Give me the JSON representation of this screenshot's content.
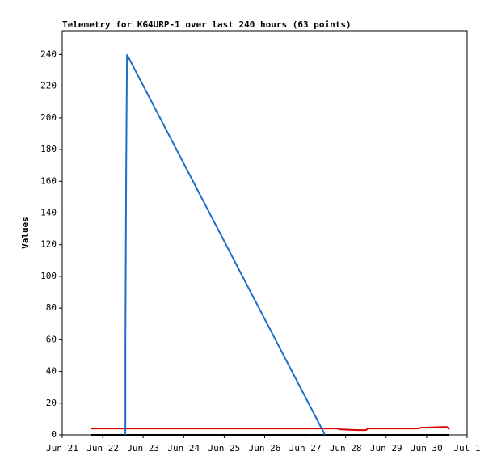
{
  "chart_data": {
    "type": "line",
    "title": "Telemetry for KG4URP-1 over last 240 hours (63 points)",
    "y_label": "Values",
    "series": [
      {
        "color": "#1f6fc8",
        "x": [
          1.56,
          1.56,
          1.58,
          1.6,
          6.49
        ],
        "values": [
          0,
          56,
          168,
          240,
          0
        ]
      },
      {
        "color": "#dd0000",
        "x": [
          0.7,
          6.8,
          6.85,
          7.3,
          7.5,
          7.55,
          8.8,
          8.85,
          9.4,
          9.5,
          9.56
        ],
        "values": [
          4,
          4,
          3.5,
          3,
          3,
          4,
          4,
          4.5,
          5,
          5,
          3.5
        ]
      },
      {
        "color": "#000000",
        "x": [
          0.7,
          9.56
        ],
        "values": [
          0,
          0
        ]
      }
    ],
    "xlim": [
      0,
      10
    ],
    "xticks": [
      {
        "value": 0,
        "label": "Jun 21"
      },
      {
        "value": 1,
        "label": "Jun 22"
      },
      {
        "value": 2,
        "label": "Jun 23"
      },
      {
        "value": 3,
        "label": "Jun 24"
      },
      {
        "value": 4,
        "label": "Jun 25"
      },
      {
        "value": 5,
        "label": "Jun 26"
      },
      {
        "value": 6,
        "label": "Jun 27"
      },
      {
        "value": 7,
        "label": "Jun 28"
      },
      {
        "value": 8,
        "label": "Jun 29"
      },
      {
        "value": 9,
        "label": "Jun 30"
      },
      {
        "value": 10,
        "label": "Jul 1"
      }
    ],
    "ylim": [
      0,
      255
    ],
    "yticks": [
      0,
      20,
      40,
      60,
      80,
      100,
      120,
      140,
      160,
      180,
      200,
      220,
      240
    ]
  }
}
